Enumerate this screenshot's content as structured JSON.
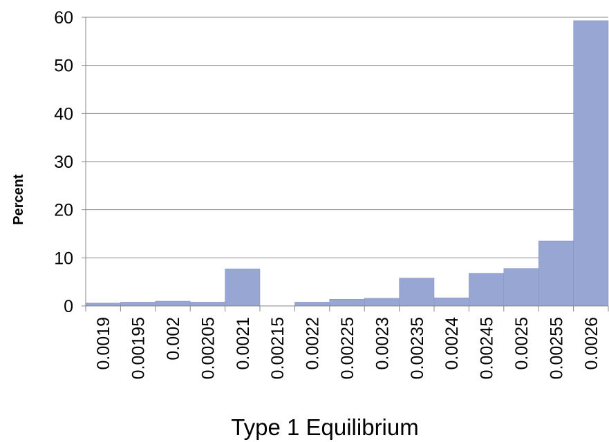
{
  "chart_data": {
    "type": "bar",
    "title": "",
    "xlabel": "Type 1 Equilibrium",
    "ylabel": "Percent",
    "categories": [
      "0.0019",
      "0.00195",
      "0.002",
      "0.00205",
      "0.0021",
      "0.00215",
      "0.0022",
      "0.00225",
      "0.0023",
      "0.00235",
      "0.0024",
      "0.00245",
      "0.0025",
      "0.00255",
      "0.0026"
    ],
    "values": [
      0.6,
      0.8,
      1.0,
      0.8,
      7.7,
      0,
      0.8,
      1.4,
      1.6,
      5.8,
      1.7,
      6.8,
      7.8,
      13.5,
      59.3
    ],
    "ylim": [
      0,
      60
    ],
    "yticks": [
      0,
      10,
      20,
      30,
      40,
      50,
      60
    ],
    "grid": true,
    "legend": "none",
    "bar_color": "#97a6d2",
    "grid_color": "#878787"
  }
}
